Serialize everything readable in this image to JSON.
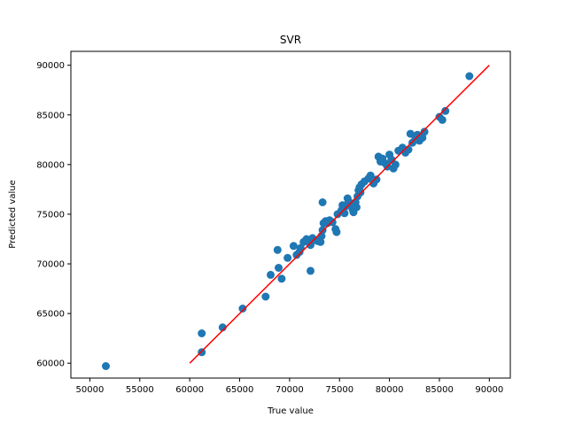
{
  "chart_data": {
    "type": "scatter",
    "title": "SVR",
    "xlabel": "True value",
    "ylabel": "Predicted value",
    "xlim": [
      48100,
      92100
    ],
    "ylim": [
      58500,
      91400
    ],
    "xticks": [
      50000,
      55000,
      60000,
      65000,
      70000,
      75000,
      80000,
      85000,
      90000
    ],
    "yticks": [
      60000,
      65000,
      70000,
      75000,
      80000,
      85000,
      90000
    ],
    "grid": false,
    "legend": "none",
    "colors": {
      "points": "#1f77b4",
      "line": "#ff0000"
    },
    "series": [
      {
        "kind": "scatter",
        "x": [
          51600,
          61200,
          61200,
          63300,
          65300,
          67600,
          68100,
          68800,
          68900,
          69200,
          69800,
          70400,
          70700,
          71000,
          71100,
          71400,
          71700,
          72000,
          72100,
          72300,
          72400,
          72800,
          73100,
          73200,
          73300,
          73400,
          73600,
          73800,
          74000,
          74300,
          74600,
          74700,
          74800,
          75200,
          75300,
          75500,
          75600,
          75800,
          75900,
          76100,
          76300,
          76400,
          76600,
          76700,
          76800,
          76900,
          77000,
          77100,
          77200,
          77500,
          77900,
          78100,
          78400,
          78700,
          78900,
          79100,
          79300,
          79600,
          79800,
          80000,
          80200,
          80400,
          80600,
          80900,
          81300,
          81600,
          81900,
          82100,
          82300,
          82600,
          82800,
          83000,
          83300,
          83500,
          85000,
          85300,
          85600,
          88000,
          72100,
          73300
        ],
        "y": [
          59700,
          63000,
          61100,
          63600,
          65500,
          66700,
          68900,
          71400,
          69600,
          68500,
          70600,
          71800,
          70900,
          71200,
          71600,
          72200,
          72500,
          72100,
          71900,
          72600,
          72400,
          72300,
          72200,
          72800,
          73400,
          74100,
          74300,
          74100,
          74400,
          74200,
          73500,
          73200,
          75000,
          75400,
          75900,
          75100,
          75800,
          76600,
          76300,
          76100,
          75500,
          75200,
          76200,
          75700,
          76800,
          77400,
          77700,
          77200,
          78000,
          78300,
          78600,
          78900,
          78100,
          78500,
          80800,
          80300,
          80600,
          80100,
          79800,
          81000,
          80500,
          79600,
          80000,
          81400,
          81700,
          81200,
          81500,
          83100,
          82200,
          82600,
          83000,
          82400,
          82700,
          83300,
          84800,
          84500,
          85400,
          88900,
          69300,
          76200
        ]
      },
      {
        "kind": "line",
        "x": [
          60000,
          90000
        ],
        "y": [
          60000,
          90000
        ]
      }
    ]
  }
}
